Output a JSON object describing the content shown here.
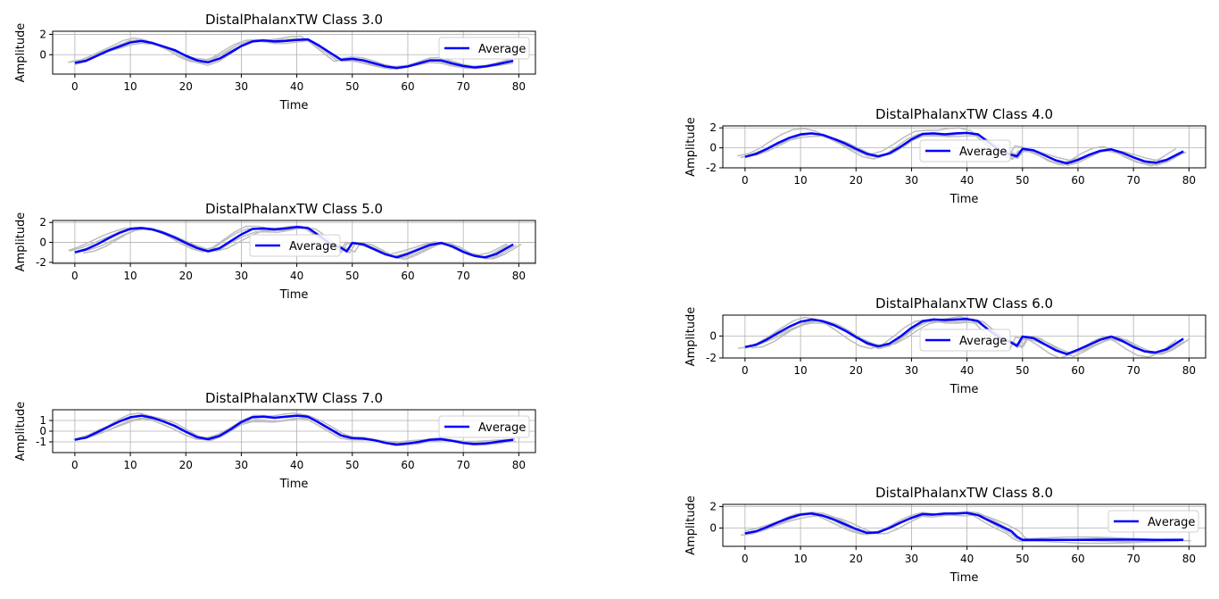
{
  "chart_data": [
    {
      "type": "line",
      "title": "DistalPhalanxTW Class 3.0",
      "xlabel": "Time",
      "ylabel": "Amplitude",
      "xlim": [
        -4,
        83
      ],
      "ylim": [
        -1.9,
        2.3
      ],
      "xticks": [
        0,
        10,
        20,
        30,
        40,
        50,
        60,
        70,
        80
      ],
      "yticks": [
        0,
        2
      ],
      "grid": true,
      "legend": "right",
      "series": [
        {
          "name": "Average",
          "color": "#0000ff",
          "x": [
            0,
            2,
            4,
            6,
            8,
            10,
            12,
            14,
            16,
            18,
            20,
            22,
            24,
            26,
            28,
            30,
            32,
            34,
            36,
            38,
            40,
            42,
            44,
            46,
            48,
            50,
            52,
            54,
            56,
            58,
            60,
            62,
            64,
            66,
            68,
            70,
            72,
            74,
            76,
            79
          ],
          "y": [
            -0.8,
            -0.6,
            -0.1,
            0.4,
            0.8,
            1.2,
            1.35,
            1.15,
            0.8,
            0.45,
            -0.1,
            -0.55,
            -0.75,
            -0.4,
            0.2,
            0.85,
            1.3,
            1.4,
            1.3,
            1.35,
            1.45,
            1.5,
            0.9,
            0.2,
            -0.5,
            -0.4,
            -0.55,
            -0.85,
            -1.15,
            -1.3,
            -1.15,
            -0.85,
            -0.55,
            -0.55,
            -0.85,
            -1.1,
            -1.25,
            -1.15,
            -0.95,
            -0.6
          ]
        }
      ]
    },
    {
      "type": "line",
      "title": "DistalPhalanxTW Class 4.0",
      "xlabel": "Time",
      "ylabel": "Amplitude",
      "xlim": [
        -4,
        83
      ],
      "ylim": [
        -2.0,
        2.2
      ],
      "xticks": [
        0,
        10,
        20,
        30,
        40,
        50,
        60,
        70,
        80
      ],
      "yticks": [
        -2,
        0,
        2
      ],
      "grid": true,
      "legend": "center",
      "series": [
        {
          "name": "Average",
          "color": "#0000ff",
          "x": [
            0,
            2,
            4,
            6,
            8,
            10,
            12,
            14,
            16,
            18,
            20,
            22,
            24,
            26,
            28,
            30,
            32,
            34,
            36,
            38,
            40,
            42,
            44,
            46,
            48,
            49,
            50,
            52,
            54,
            56,
            58,
            60,
            62,
            64,
            66,
            68,
            70,
            72,
            74,
            76,
            79
          ],
          "y": [
            -0.9,
            -0.6,
            -0.1,
            0.5,
            1.0,
            1.35,
            1.45,
            1.3,
            0.9,
            0.45,
            -0.1,
            -0.6,
            -0.85,
            -0.55,
            0.1,
            0.85,
            1.4,
            1.45,
            1.35,
            1.45,
            1.5,
            1.35,
            0.5,
            -0.3,
            -0.7,
            -0.85,
            -0.1,
            -0.25,
            -0.75,
            -1.25,
            -1.55,
            -1.2,
            -0.7,
            -0.3,
            -0.15,
            -0.5,
            -0.95,
            -1.35,
            -1.5,
            -1.2,
            -0.35
          ]
        }
      ]
    },
    {
      "type": "line",
      "title": "DistalPhalanxTW Class 5.0",
      "xlabel": "Time",
      "ylabel": "Amplitude",
      "xlim": [
        -4,
        83
      ],
      "ylim": [
        -2.1,
        2.2
      ],
      "xticks": [
        0,
        10,
        20,
        30,
        40,
        50,
        60,
        70,
        80
      ],
      "yticks": [
        -2,
        0,
        2
      ],
      "grid": true,
      "legend": "center",
      "series": [
        {
          "name": "Average",
          "color": "#0000ff",
          "x": [
            0,
            2,
            4,
            6,
            8,
            10,
            12,
            14,
            16,
            18,
            20,
            22,
            24,
            26,
            28,
            30,
            32,
            34,
            36,
            38,
            40,
            42,
            44,
            46,
            48,
            49,
            50,
            52,
            54,
            56,
            58,
            60,
            62,
            64,
            66,
            68,
            70,
            72,
            74,
            76,
            79
          ],
          "y": [
            -1.0,
            -0.7,
            -0.2,
            0.4,
            0.95,
            1.35,
            1.45,
            1.3,
            0.95,
            0.5,
            -0.05,
            -0.55,
            -0.9,
            -0.6,
            0.1,
            0.8,
            1.35,
            1.4,
            1.3,
            1.4,
            1.55,
            1.45,
            0.7,
            -0.1,
            -0.55,
            -0.9,
            -0.05,
            -0.2,
            -0.7,
            -1.2,
            -1.5,
            -1.15,
            -0.7,
            -0.25,
            -0.05,
            -0.4,
            -0.95,
            -1.35,
            -1.5,
            -1.15,
            -0.2
          ]
        }
      ]
    },
    {
      "type": "line",
      "title": "DistalPhalanxTW Class 6.0",
      "xlabel": "Time",
      "ylabel": "Amplitude",
      "xlim": [
        -4,
        83
      ],
      "ylim": [
        -2.0,
        1.9
      ],
      "xticks": [
        0,
        10,
        20,
        30,
        40,
        50,
        60,
        70,
        80
      ],
      "yticks": [
        -2,
        0
      ],
      "grid": true,
      "legend": "center",
      "series": [
        {
          "name": "Average",
          "color": "#0000ff",
          "x": [
            0,
            2,
            4,
            6,
            8,
            10,
            12,
            14,
            16,
            18,
            20,
            22,
            24,
            26,
            28,
            30,
            32,
            34,
            36,
            38,
            40,
            42,
            44,
            46,
            48,
            49,
            50,
            52,
            54,
            56,
            58,
            60,
            62,
            64,
            66,
            68,
            70,
            72,
            74,
            76,
            79
          ],
          "y": [
            -1.0,
            -0.8,
            -0.3,
            0.3,
            0.85,
            1.3,
            1.5,
            1.35,
            1.0,
            0.5,
            -0.1,
            -0.65,
            -0.95,
            -0.7,
            -0.05,
            0.75,
            1.35,
            1.5,
            1.45,
            1.5,
            1.55,
            1.35,
            0.5,
            -0.2,
            -0.6,
            -0.9,
            -0.05,
            -0.2,
            -0.75,
            -1.3,
            -1.65,
            -1.25,
            -0.8,
            -0.35,
            -0.05,
            -0.45,
            -1.0,
            -1.4,
            -1.5,
            -1.2,
            -0.25
          ]
        }
      ]
    },
    {
      "type": "line",
      "title": "DistalPhalanxTW Class 7.0",
      "xlabel": "Time",
      "ylabel": "Amplitude",
      "xlim": [
        -4,
        83
      ],
      "ylim": [
        -2.0,
        2.0
      ],
      "xticks": [
        0,
        10,
        20,
        30,
        40,
        50,
        60,
        70,
        80
      ],
      "yticks": [
        -1,
        0,
        1
      ],
      "grid": true,
      "legend": "right",
      "series": [
        {
          "name": "Average",
          "color": "#0000ff",
          "x": [
            0,
            2,
            4,
            6,
            8,
            10,
            12,
            14,
            16,
            18,
            20,
            22,
            24,
            26,
            28,
            30,
            32,
            34,
            36,
            38,
            40,
            42,
            44,
            46,
            48,
            50,
            52,
            54,
            56,
            58,
            60,
            62,
            64,
            66,
            68,
            70,
            72,
            74,
            76,
            79
          ],
          "y": [
            -0.8,
            -0.6,
            -0.1,
            0.4,
            0.9,
            1.3,
            1.45,
            1.25,
            0.9,
            0.5,
            -0.05,
            -0.55,
            -0.75,
            -0.45,
            0.15,
            0.85,
            1.3,
            1.35,
            1.25,
            1.35,
            1.45,
            1.35,
            0.8,
            0.2,
            -0.4,
            -0.65,
            -0.7,
            -0.85,
            -1.1,
            -1.25,
            -1.15,
            -1.0,
            -0.8,
            -0.75,
            -0.9,
            -1.1,
            -1.2,
            -1.15,
            -1.0,
            -0.8
          ]
        }
      ]
    },
    {
      "type": "line",
      "title": "DistalPhalanxTW Class 8.0",
      "xlabel": "Time",
      "ylabel": "Amplitude",
      "xlim": [
        -4,
        83
      ],
      "ylim": [
        -1.7,
        2.2
      ],
      "xticks": [
        0,
        10,
        20,
        30,
        40,
        50,
        60,
        70,
        80
      ],
      "yticks": [
        0,
        2
      ],
      "grid": true,
      "legend": "right",
      "series": [
        {
          "name": "Average",
          "color": "#0000ff",
          "x": [
            0,
            2,
            4,
            6,
            8,
            10,
            12,
            14,
            16,
            18,
            20,
            22,
            24,
            26,
            28,
            30,
            32,
            34,
            36,
            38,
            40,
            42,
            44,
            46,
            48,
            49,
            50,
            54,
            58,
            62,
            66,
            70,
            74,
            79
          ],
          "y": [
            -0.5,
            -0.3,
            0.1,
            0.55,
            0.95,
            1.25,
            1.35,
            1.15,
            0.8,
            0.35,
            -0.1,
            -0.45,
            -0.4,
            0.0,
            0.5,
            0.95,
            1.3,
            1.25,
            1.35,
            1.35,
            1.4,
            1.2,
            0.7,
            0.2,
            -0.3,
            -0.8,
            -1.1,
            -1.1,
            -1.1,
            -1.1,
            -1.08,
            -1.08,
            -1.1,
            -1.1
          ]
        }
      ]
    }
  ]
}
